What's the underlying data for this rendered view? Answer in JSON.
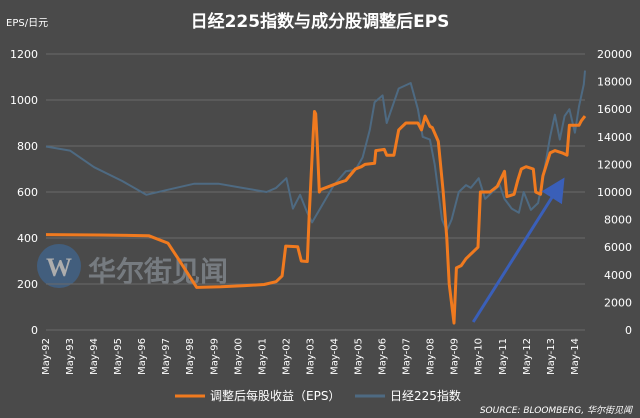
{
  "chart_data": {
    "type": "line",
    "title": "日经225指数与成分股调整后EPS",
    "y_left_unit": "EPS/日元",
    "ylim_left": [
      0,
      1200
    ],
    "ylim_right": [
      0,
      20000
    ],
    "yticks_left": [
      "0",
      "200",
      "400",
      "600",
      "800",
      "1000",
      "1200"
    ],
    "yticks_right": [
      "0",
      "2000",
      "4000",
      "6000",
      "8000",
      "10000",
      "12000",
      "14000",
      "16000",
      "18000",
      "20000"
    ],
    "xticks": [
      "May-92",
      "May-93",
      "May-94",
      "May-95",
      "May-96",
      "May-97",
      "May-98",
      "May-99",
      "May-00",
      "May-01",
      "May-02",
      "May-03",
      "May-04",
      "May-05",
      "May-06",
      "May-07",
      "May-08",
      "May-09",
      "May-10",
      "May-11",
      "May-12",
      "May-13",
      "May-14"
    ],
    "x_range": [
      1992.33,
      2014.75
    ],
    "series": [
      {
        "name": "调整后每股收益（EPS）",
        "axis": "left",
        "color": "#f07a1f",
        "points": [
          [
            1992.33,
            415
          ],
          [
            1994.5,
            413
          ],
          [
            1996.6,
            410
          ],
          [
            1997.4,
            378
          ],
          [
            1997.8,
            315
          ],
          [
            1998.6,
            185
          ],
          [
            1999.6,
            188
          ],
          [
            2000.6,
            193
          ],
          [
            2001.4,
            198
          ],
          [
            2001.9,
            210
          ],
          [
            2002.15,
            235
          ],
          [
            2002.3,
            365
          ],
          [
            2002.8,
            362
          ],
          [
            2002.95,
            300
          ],
          [
            2003.2,
            298
          ],
          [
            2003.28,
            500
          ],
          [
            2003.45,
            860
          ],
          [
            2003.5,
            950
          ],
          [
            2003.55,
            940
          ],
          [
            2003.62,
            800
          ],
          [
            2003.7,
            600
          ],
          [
            2003.75,
            610
          ],
          [
            2004.5,
            640
          ],
          [
            2004.8,
            650
          ],
          [
            2005.2,
            700
          ],
          [
            2005.45,
            710
          ],
          [
            2005.6,
            720
          ],
          [
            2006.0,
            725
          ],
          [
            2006.05,
            780
          ],
          [
            2006.4,
            785
          ],
          [
            2006.5,
            760
          ],
          [
            2006.8,
            760
          ],
          [
            2007.0,
            870
          ],
          [
            2007.3,
            900
          ],
          [
            2007.8,
            900
          ],
          [
            2007.95,
            870
          ],
          [
            2008.1,
            930
          ],
          [
            2008.3,
            885
          ],
          [
            2008.4,
            880
          ],
          [
            2008.65,
            820
          ],
          [
            2008.85,
            600
          ],
          [
            2009.0,
            400
          ],
          [
            2009.1,
            200
          ],
          [
            2009.3,
            30
          ],
          [
            2009.4,
            270
          ],
          [
            2009.6,
            280
          ],
          [
            2009.8,
            310
          ],
          [
            2010.0,
            330
          ],
          [
            2010.3,
            360
          ],
          [
            2010.4,
            600
          ],
          [
            2010.8,
            600
          ],
          [
            2011.1,
            625
          ],
          [
            2011.4,
            690
          ],
          [
            2011.5,
            580
          ],
          [
            2011.8,
            590
          ],
          [
            2011.95,
            650
          ],
          [
            2012.1,
            700
          ],
          [
            2012.3,
            710
          ],
          [
            2012.6,
            700
          ],
          [
            2012.7,
            600
          ],
          [
            2012.9,
            590
          ],
          [
            2013.0,
            670
          ],
          [
            2013.3,
            770
          ],
          [
            2013.5,
            780
          ],
          [
            2013.8,
            770
          ],
          [
            2014.0,
            760
          ],
          [
            2014.1,
            890
          ],
          [
            2014.5,
            890
          ],
          [
            2014.6,
            910
          ],
          [
            2014.75,
            930
          ]
        ]
      },
      {
        "name": "日经225指数",
        "axis": "right",
        "color": "#4e6a82",
        "points": [
          [
            1992.33,
            13300
          ],
          [
            1993.33,
            13000
          ],
          [
            1994.33,
            11800
          ],
          [
            1995.5,
            10800
          ],
          [
            1996.5,
            9800
          ],
          [
            1997.5,
            10200
          ],
          [
            1998.5,
            10600
          ],
          [
            1999.5,
            10600
          ],
          [
            2000.5,
            10300
          ],
          [
            2001.5,
            10000
          ],
          [
            2001.9,
            10300
          ],
          [
            2002.33,
            11000
          ],
          [
            2002.6,
            8800
          ],
          [
            2002.9,
            9800
          ],
          [
            2003.2,
            8500
          ],
          [
            2003.4,
            7800
          ],
          [
            2003.8,
            9000
          ],
          [
            2004.3,
            10500
          ],
          [
            2004.8,
            11500
          ],
          [
            2005.2,
            11600
          ],
          [
            2005.5,
            12500
          ],
          [
            2005.8,
            14500
          ],
          [
            2006.0,
            16500
          ],
          [
            2006.33,
            17000
          ],
          [
            2006.5,
            15000
          ],
          [
            2006.8,
            16500
          ],
          [
            2007.0,
            17500
          ],
          [
            2007.5,
            17900
          ],
          [
            2007.8,
            16000
          ],
          [
            2008.0,
            14000
          ],
          [
            2008.3,
            13800
          ],
          [
            2008.5,
            12000
          ],
          [
            2008.8,
            8000
          ],
          [
            2009.0,
            7200
          ],
          [
            2009.2,
            8000
          ],
          [
            2009.5,
            10000
          ],
          [
            2009.8,
            10500
          ],
          [
            2010.0,
            10300
          ],
          [
            2010.33,
            11000
          ],
          [
            2010.6,
            9500
          ],
          [
            2010.9,
            10000
          ],
          [
            2011.2,
            10500
          ],
          [
            2011.4,
            9500
          ],
          [
            2011.7,
            8800
          ],
          [
            2012.0,
            8500
          ],
          [
            2012.2,
            10000
          ],
          [
            2012.5,
            8700
          ],
          [
            2012.8,
            9200
          ],
          [
            2013.0,
            11000
          ],
          [
            2013.3,
            14000
          ],
          [
            2013.5,
            15600
          ],
          [
            2013.7,
            13800
          ],
          [
            2013.9,
            15500
          ],
          [
            2014.1,
            16000
          ],
          [
            2014.33,
            14300
          ],
          [
            2014.5,
            16200
          ],
          [
            2014.7,
            17800
          ],
          [
            2014.75,
            18800
          ]
        ]
      }
    ],
    "annotation": {
      "type": "arrow",
      "color": "#3a5fb8",
      "from": [
        2010.1,
        0.5
      ],
      "to": [
        2013.7,
        10500
      ]
    }
  },
  "legend": {
    "eps_label": "调整后每股收益（EPS）",
    "nikkei_label": "日经225指数"
  },
  "source": "SOURCE: BLOOMBERG, 华尔街见闻",
  "watermark": "华尔街见闻",
  "colors": {
    "background": "#4a4a4a",
    "eps": "#f07a1f",
    "nikkei": "#4e6a82",
    "arrow": "#3a5fb8"
  }
}
